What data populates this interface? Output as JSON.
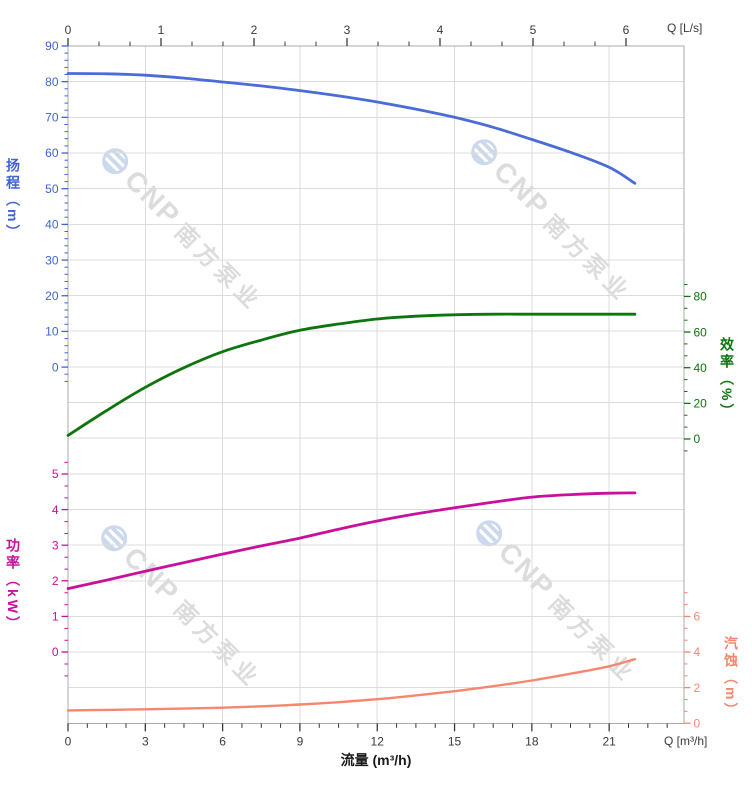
{
  "watermark": {
    "logo_text": "CNP",
    "brand_text": "南方泵业"
  },
  "chart_data": {
    "type": "line",
    "title": "",
    "grid": true,
    "legend": "none",
    "axes": {
      "top_x": {
        "name": "Q [L/s]",
        "tick_values": [
          0,
          1,
          2,
          3,
          4,
          5,
          6
        ],
        "range": [
          0,
          6.62
        ],
        "minor_divisions": 3,
        "color": "#3a3a3a"
      },
      "bottom_x": {
        "name": "Q [m³/h]",
        "axis_title": "流量 (m³/h)",
        "tick_values": [
          0,
          3,
          6,
          9,
          12,
          15,
          18,
          21
        ],
        "range": [
          0,
          23.9
        ],
        "minor_step": 0.75,
        "color": "#3a3a3a"
      },
      "head": {
        "axis_title": "扬程（m）",
        "unit": "m",
        "side": "left",
        "tick_values": [
          90,
          80,
          70,
          60,
          50,
          40,
          30,
          20,
          10,
          0
        ],
        "minor_step": 2,
        "color": "#4163d3"
      },
      "efficiency": {
        "axis_title": "效率（%）",
        "unit": "%",
        "side": "right",
        "tick_values": [
          80,
          60,
          40,
          20,
          0
        ],
        "minor_step": 6.667,
        "color": "#0e750e"
      },
      "power": {
        "axis_title": "功率（kW）",
        "unit": "kW",
        "side": "left",
        "tick_values": [
          5,
          4,
          3,
          2,
          1,
          0
        ],
        "minor_step": 0.3333,
        "color": "#c8109c"
      },
      "npsh": {
        "axis_title": "汽蚀（m）",
        "unit": "m",
        "side": "right",
        "tick_values": [
          6,
          4,
          2,
          0
        ],
        "minor_step": 0.6667,
        "color": "#f5876f"
      }
    },
    "series": [
      {
        "id": "head",
        "label": "扬程",
        "axis": "head",
        "color": "#4a6cd9",
        "width": 2.8,
        "points": [
          [
            0,
            82.3
          ],
          [
            1.5,
            82.2
          ],
          [
            3,
            81.8
          ],
          [
            4.5,
            81.0
          ],
          [
            6,
            79.9
          ],
          [
            7.5,
            78.8
          ],
          [
            9,
            77.5
          ],
          [
            10.5,
            76.0
          ],
          [
            12,
            74.3
          ],
          [
            13.5,
            72.3
          ],
          [
            15,
            70.0
          ],
          [
            16.5,
            67.2
          ],
          [
            18,
            63.8
          ],
          [
            19.5,
            60.2
          ],
          [
            21,
            56.0
          ],
          [
            22,
            51.5
          ]
        ]
      },
      {
        "id": "efficiency",
        "label": "效率",
        "axis": "efficiency",
        "color": "#0e750e",
        "width": 2.8,
        "points": [
          [
            0,
            2
          ],
          [
            1.5,
            16
          ],
          [
            3,
            29
          ],
          [
            4.5,
            40
          ],
          [
            6,
            49
          ],
          [
            7.5,
            55.5
          ],
          [
            9,
            61
          ],
          [
            10.5,
            64.5
          ],
          [
            12,
            67.3
          ],
          [
            13.5,
            68.9
          ],
          [
            15,
            69.7
          ],
          [
            16.5,
            70
          ],
          [
            18,
            70
          ],
          [
            19.5,
            70
          ],
          [
            21,
            70
          ],
          [
            22,
            70
          ]
        ]
      },
      {
        "id": "power",
        "label": "功率",
        "axis": "power",
        "color": "#c8109c",
        "width": 2.8,
        "points": [
          [
            0,
            1.78
          ],
          [
            1.5,
            2.02
          ],
          [
            3,
            2.27
          ],
          [
            4.5,
            2.51
          ],
          [
            6,
            2.75
          ],
          [
            7.5,
            2.98
          ],
          [
            9,
            3.2
          ],
          [
            10.5,
            3.45
          ],
          [
            12,
            3.68
          ],
          [
            13.5,
            3.88
          ],
          [
            15,
            4.05
          ],
          [
            16.5,
            4.21
          ],
          [
            18,
            4.35
          ],
          [
            19.5,
            4.42
          ],
          [
            21,
            4.46
          ],
          [
            22,
            4.47
          ]
        ]
      },
      {
        "id": "npsh",
        "label": "汽蚀",
        "axis": "npsh",
        "color": "#f5876f",
        "width": 2.4,
        "points": [
          [
            0,
            0.72
          ],
          [
            1.5,
            0.75
          ],
          [
            3,
            0.78
          ],
          [
            4.5,
            0.82
          ],
          [
            6,
            0.87
          ],
          [
            7.5,
            0.95
          ],
          [
            9,
            1.05
          ],
          [
            10.5,
            1.18
          ],
          [
            12,
            1.35
          ],
          [
            13.5,
            1.56
          ],
          [
            15,
            1.8
          ],
          [
            16.5,
            2.08
          ],
          [
            18,
            2.4
          ],
          [
            19.5,
            2.78
          ],
          [
            21,
            3.2
          ],
          [
            22,
            3.6
          ]
        ]
      }
    ]
  }
}
